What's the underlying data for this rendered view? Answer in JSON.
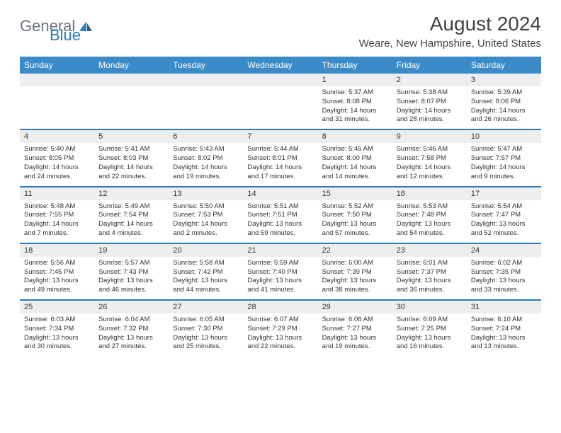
{
  "logo": {
    "text1": "General",
    "text2": "Blue"
  },
  "title": "August 2024",
  "location": "Weare, New Hampshire, United States",
  "colors": {
    "header_bg": "#3b8bc9",
    "separator": "#2b7bbf",
    "daynum_bg": "#eeeeee",
    "text": "#333333",
    "logo_gray": "#6b7280",
    "logo_blue": "#2b7bbf"
  },
  "dow": [
    "Sunday",
    "Monday",
    "Tuesday",
    "Wednesday",
    "Thursday",
    "Friday",
    "Saturday"
  ],
  "weeks": [
    {
      "nums": [
        "",
        "",
        "",
        "",
        "1",
        "2",
        "3"
      ],
      "cells": [
        null,
        null,
        null,
        null,
        {
          "sr": "Sunrise: 5:37 AM",
          "ss": "Sunset: 8:08 PM",
          "d1": "Daylight: 14 hours",
          "d2": "and 31 minutes."
        },
        {
          "sr": "Sunrise: 5:38 AM",
          "ss": "Sunset: 8:07 PM",
          "d1": "Daylight: 14 hours",
          "d2": "and 28 minutes."
        },
        {
          "sr": "Sunrise: 5:39 AM",
          "ss": "Sunset: 8:06 PM",
          "d1": "Daylight: 14 hours",
          "d2": "and 26 minutes."
        }
      ]
    },
    {
      "nums": [
        "4",
        "5",
        "6",
        "7",
        "8",
        "9",
        "10"
      ],
      "cells": [
        {
          "sr": "Sunrise: 5:40 AM",
          "ss": "Sunset: 8:05 PM",
          "d1": "Daylight: 14 hours",
          "d2": "and 24 minutes."
        },
        {
          "sr": "Sunrise: 5:41 AM",
          "ss": "Sunset: 8:03 PM",
          "d1": "Daylight: 14 hours",
          "d2": "and 22 minutes."
        },
        {
          "sr": "Sunrise: 5:43 AM",
          "ss": "Sunset: 8:02 PM",
          "d1": "Daylight: 14 hours",
          "d2": "and 19 minutes."
        },
        {
          "sr": "Sunrise: 5:44 AM",
          "ss": "Sunset: 8:01 PM",
          "d1": "Daylight: 14 hours",
          "d2": "and 17 minutes."
        },
        {
          "sr": "Sunrise: 5:45 AM",
          "ss": "Sunset: 8:00 PM",
          "d1": "Daylight: 14 hours",
          "d2": "and 14 minutes."
        },
        {
          "sr": "Sunrise: 5:46 AM",
          "ss": "Sunset: 7:58 PM",
          "d1": "Daylight: 14 hours",
          "d2": "and 12 minutes."
        },
        {
          "sr": "Sunrise: 5:47 AM",
          "ss": "Sunset: 7:57 PM",
          "d1": "Daylight: 14 hours",
          "d2": "and 9 minutes."
        }
      ]
    },
    {
      "nums": [
        "11",
        "12",
        "13",
        "14",
        "15",
        "16",
        "17"
      ],
      "cells": [
        {
          "sr": "Sunrise: 5:48 AM",
          "ss": "Sunset: 7:55 PM",
          "d1": "Daylight: 14 hours",
          "d2": "and 7 minutes."
        },
        {
          "sr": "Sunrise: 5:49 AM",
          "ss": "Sunset: 7:54 PM",
          "d1": "Daylight: 14 hours",
          "d2": "and 4 minutes."
        },
        {
          "sr": "Sunrise: 5:50 AM",
          "ss": "Sunset: 7:53 PM",
          "d1": "Daylight: 14 hours",
          "d2": "and 2 minutes."
        },
        {
          "sr": "Sunrise: 5:51 AM",
          "ss": "Sunset: 7:51 PM",
          "d1": "Daylight: 13 hours",
          "d2": "and 59 minutes."
        },
        {
          "sr": "Sunrise: 5:52 AM",
          "ss": "Sunset: 7:50 PM",
          "d1": "Daylight: 13 hours",
          "d2": "and 57 minutes."
        },
        {
          "sr": "Sunrise: 5:53 AM",
          "ss": "Sunset: 7:48 PM",
          "d1": "Daylight: 13 hours",
          "d2": "and 54 minutes."
        },
        {
          "sr": "Sunrise: 5:54 AM",
          "ss": "Sunset: 7:47 PM",
          "d1": "Daylight: 13 hours",
          "d2": "and 52 minutes."
        }
      ]
    },
    {
      "nums": [
        "18",
        "19",
        "20",
        "21",
        "22",
        "23",
        "24"
      ],
      "cells": [
        {
          "sr": "Sunrise: 5:56 AM",
          "ss": "Sunset: 7:45 PM",
          "d1": "Daylight: 13 hours",
          "d2": "and 49 minutes."
        },
        {
          "sr": "Sunrise: 5:57 AM",
          "ss": "Sunset: 7:43 PM",
          "d1": "Daylight: 13 hours",
          "d2": "and 46 minutes."
        },
        {
          "sr": "Sunrise: 5:58 AM",
          "ss": "Sunset: 7:42 PM",
          "d1": "Daylight: 13 hours",
          "d2": "and 44 minutes."
        },
        {
          "sr": "Sunrise: 5:59 AM",
          "ss": "Sunset: 7:40 PM",
          "d1": "Daylight: 13 hours",
          "d2": "and 41 minutes."
        },
        {
          "sr": "Sunrise: 6:00 AM",
          "ss": "Sunset: 7:39 PM",
          "d1": "Daylight: 13 hours",
          "d2": "and 38 minutes."
        },
        {
          "sr": "Sunrise: 6:01 AM",
          "ss": "Sunset: 7:37 PM",
          "d1": "Daylight: 13 hours",
          "d2": "and 36 minutes."
        },
        {
          "sr": "Sunrise: 6:02 AM",
          "ss": "Sunset: 7:35 PM",
          "d1": "Daylight: 13 hours",
          "d2": "and 33 minutes."
        }
      ]
    },
    {
      "nums": [
        "25",
        "26",
        "27",
        "28",
        "29",
        "30",
        "31"
      ],
      "cells": [
        {
          "sr": "Sunrise: 6:03 AM",
          "ss": "Sunset: 7:34 PM",
          "d1": "Daylight: 13 hours",
          "d2": "and 30 minutes."
        },
        {
          "sr": "Sunrise: 6:04 AM",
          "ss": "Sunset: 7:32 PM",
          "d1": "Daylight: 13 hours",
          "d2": "and 27 minutes."
        },
        {
          "sr": "Sunrise: 6:05 AM",
          "ss": "Sunset: 7:30 PM",
          "d1": "Daylight: 13 hours",
          "d2": "and 25 minutes."
        },
        {
          "sr": "Sunrise: 6:07 AM",
          "ss": "Sunset: 7:29 PM",
          "d1": "Daylight: 13 hours",
          "d2": "and 22 minutes."
        },
        {
          "sr": "Sunrise: 6:08 AM",
          "ss": "Sunset: 7:27 PM",
          "d1": "Daylight: 13 hours",
          "d2": "and 19 minutes."
        },
        {
          "sr": "Sunrise: 6:09 AM",
          "ss": "Sunset: 7:25 PM",
          "d1": "Daylight: 13 hours",
          "d2": "and 16 minutes."
        },
        {
          "sr": "Sunrise: 6:10 AM",
          "ss": "Sunset: 7:24 PM",
          "d1": "Daylight: 13 hours",
          "d2": "and 13 minutes."
        }
      ]
    }
  ]
}
